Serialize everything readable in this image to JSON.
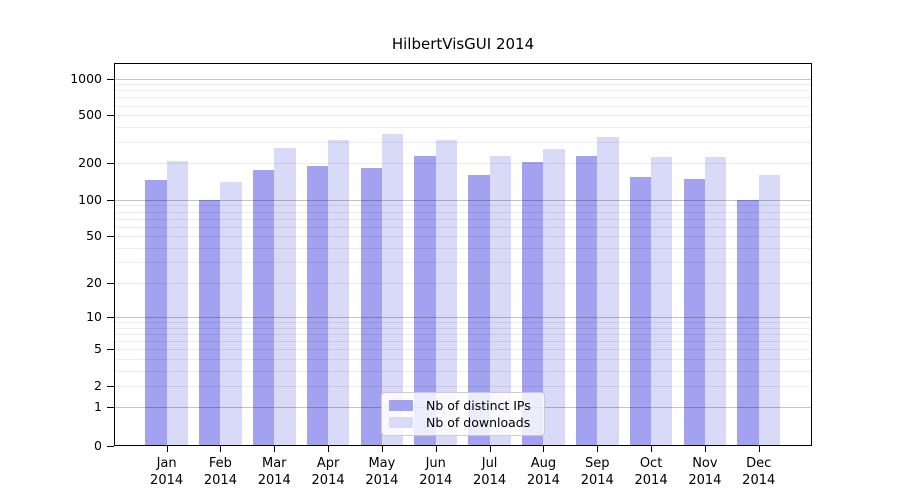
{
  "chart_data": {
    "type": "bar",
    "title": "HilbertVisGUI 2014",
    "categories": [
      "Jan",
      "Feb",
      "Mar",
      "Apr",
      "May",
      "Jun",
      "Jul",
      "Aug",
      "Sep",
      "Oct",
      "Nov",
      "Dec"
    ],
    "category_year": "2014",
    "series": [
      {
        "name": "Nb of distinct IPs",
        "color": "#a2a2f0",
        "values": [
          145,
          100,
          178,
          190,
          185,
          230,
          160,
          205,
          230,
          155,
          150,
          100
        ]
      },
      {
        "name": "Nb of downloads",
        "color": "#d9d9f8",
        "values": [
          210,
          140,
          268,
          310,
          350,
          315,
          230,
          265,
          330,
          225,
          225,
          160
        ]
      }
    ],
    "y_axis": {
      "scale": "log1p",
      "tick_values": [
        0,
        1,
        2,
        5,
        10,
        20,
        50,
        100,
        200,
        500,
        1000
      ],
      "tick_labels": [
        "0",
        "1",
        "2",
        "5",
        "10",
        "20",
        "50",
        "100",
        "200",
        "500",
        "1000"
      ],
      "range": [
        0,
        1340
      ]
    },
    "grid": {
      "enabled": true,
      "decade_lines": [
        1,
        10,
        100,
        1000
      ],
      "minor_color": "#ececec",
      "major_color": "#c4c4c4"
    },
    "legend": {
      "position": "bottom-center",
      "entries": [
        "Nb of distinct IPs",
        "Nb of downloads"
      ]
    }
  }
}
